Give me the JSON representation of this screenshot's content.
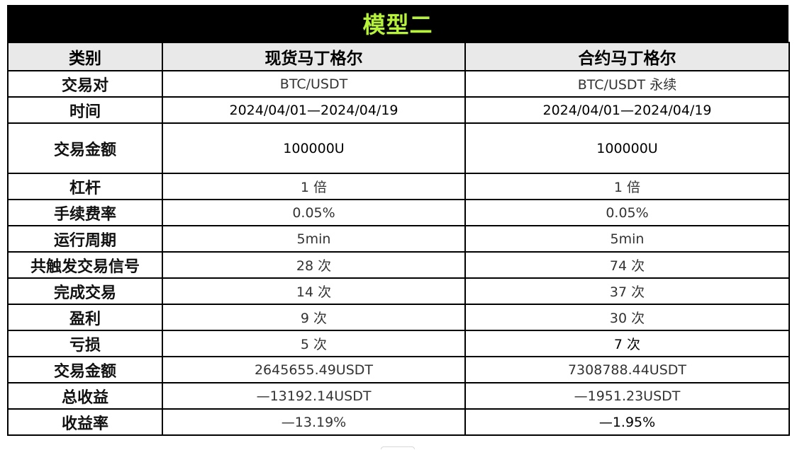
{
  "title": "模型二",
  "headers": [
    "类别",
    "现货马丁格尔",
    "合约马丁格尔"
  ],
  "rows": [
    {
      "label": "交易对",
      "spot": "BTC/USDT",
      "futures": "BTC/USDT 永续"
    },
    {
      "label": "时间",
      "spot": "2024/04/01—2024/04/19",
      "futures": "2024/04/01—2024/04/19"
    },
    {
      "label": "交易金额",
      "spot": "100000U",
      "futures": "100000U"
    },
    {
      "label": "杠杆",
      "spot": "1 倍",
      "futures": "1 倍"
    },
    {
      "label": "手续费率",
      "spot": "0.05%",
      "futures": "0.05%"
    },
    {
      "label": "运行周期",
      "spot": "5min",
      "futures": "5min"
    },
    {
      "label": "共触发交易信号",
      "spot": "28 次",
      "futures": "74 次"
    },
    {
      "label": "完成交易",
      "spot": "14 次",
      "futures": "37 次"
    },
    {
      "label": "盈利",
      "spot": "9 次",
      "futures": "30 次"
    },
    {
      "label": "亏损",
      "spot": "5 次",
      "futures": "7 次"
    },
    {
      "label": "交易金额",
      "spot": "2645655.49USDT",
      "futures": "7308788.44USDT"
    },
    {
      "label": "总收益",
      "spot": "—13192.14USDT",
      "futures": "—1951.23USDT"
    },
    {
      "label": "收益率",
      "spot": "—13.19%",
      "futures": "—1.95%"
    }
  ]
}
